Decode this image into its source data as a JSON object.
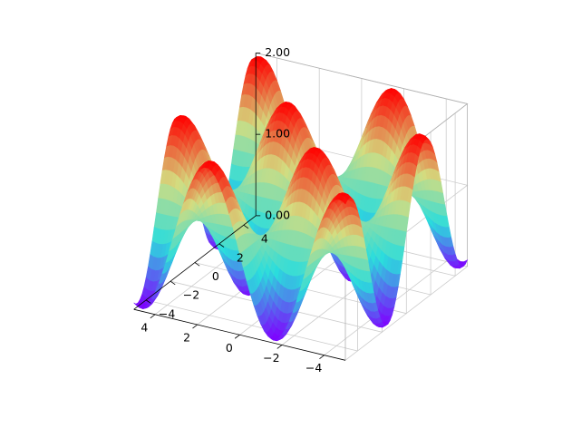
{
  "chart_data": {
    "type": "surface3d",
    "title": "",
    "xlabel": "",
    "ylabel": "",
    "zlabel": "",
    "function": "sin(x)*sin(y)+1 (approx.)",
    "xlim": [
      -5,
      5
    ],
    "ylim": [
      -5,
      5
    ],
    "zlim": [
      0,
      2
    ],
    "x_ticks": [
      "−4",
      "−2",
      "0",
      "2",
      "4"
    ],
    "y_ticks": [
      "−4",
      "−2",
      "0",
      "2",
      "4"
    ],
    "z_ticks": [
      "0.00",
      "1.00",
      "2.00"
    ],
    "x_tick_values": [
      -4,
      -2,
      0,
      2,
      4
    ],
    "y_tick_values": [
      -4,
      -2,
      0,
      2,
      4
    ],
    "z_tick_values": [
      0,
      1,
      2
    ],
    "grid": true,
    "colormap": "rainbow",
    "colormap_stops": [
      "#7f00ff",
      "#2adddd",
      "#d4dd80",
      "#ff0000"
    ],
    "grid_color": "#cccccc",
    "pane_color": "#ffffff"
  }
}
